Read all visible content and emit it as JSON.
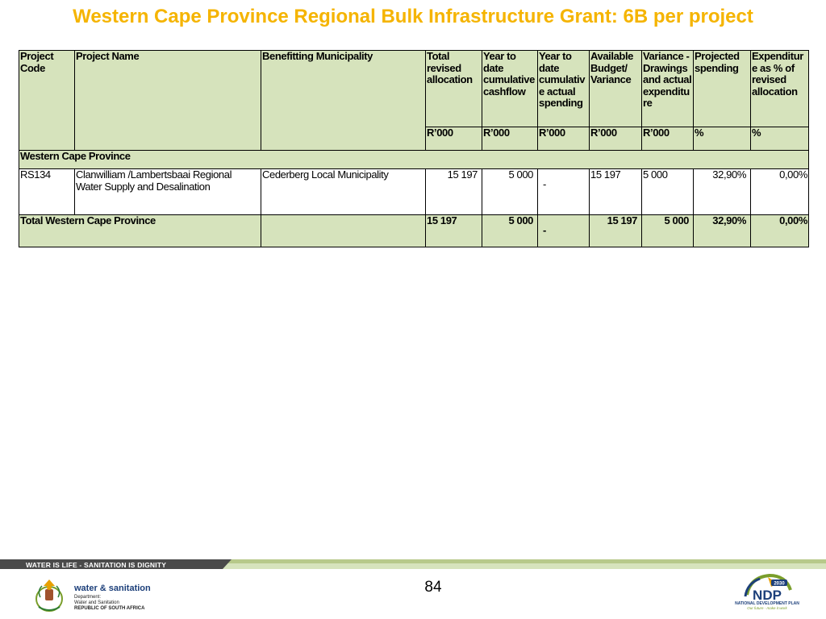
{
  "title": "Western Cape Province Regional Bulk Infrastructure Grant: 6B per project",
  "table": {
    "headers": [
      "Project Code",
      "Project Name",
      "Benefitting Municipality",
      "Total revised allocation",
      "Year to date cumulative cashflow",
      "Year to date cumulativ e actual spending",
      "Available Budget/ Variance",
      "Variance - Drawings and actual expenditu re",
      "Projected spending",
      "Expenditur e as % of revised allocation"
    ],
    "units": [
      "R’000",
      "R’000",
      "R’000",
      "R’000",
      "R’000",
      "%",
      "%"
    ],
    "region": "Western Cape Province",
    "rows": [
      {
        "code": "RS134",
        "name": "Clanwilliam /Lambertsbaai Regional Water Supply and Desalination",
        "municipality": "Cederberg Local Municipality",
        "total_revised_allocation": "15 197",
        "ytd_cashflow": "5 000",
        "ytd_actual_spending": "-",
        "available_budget": "15 197",
        "variance": "5 000",
        "projected_spending": "32,90%",
        "expenditure_pct": "0,00%"
      }
    ],
    "total": {
      "label": "Total Western Cape Province",
      "total_revised_allocation": "15 197",
      "ytd_cashflow": "5 000",
      "ytd_actual_spending": "-",
      "available_budget": "15 197",
      "variance": "5 000",
      "projected_spending": "32,90%",
      "expenditure_pct": "0,00%"
    }
  },
  "footer": {
    "slogan": "WATER IS LIFE - SANITATION IS DIGNITY",
    "page_number": "84",
    "dept_name": "water & sanitation",
    "dept_lines": [
      "Department:",
      "Water and Sanitation",
      "REPUBLIC OF SOUTH AFRICA"
    ],
    "ndp_year": "2030",
    "ndp_letters": "NDP",
    "ndp_name": "NATIONAL DEVELOPMENT PLAN",
    "ndp_tagline": "Our future - make it work"
  },
  "colors": {
    "title": "#F5B400",
    "table_header_fill": "#D6E3BC",
    "footer_bar_dark": "#4A4A4A",
    "footer_bar_light": "#B7C98A",
    "dept_blue": "#1C3F7A"
  }
}
